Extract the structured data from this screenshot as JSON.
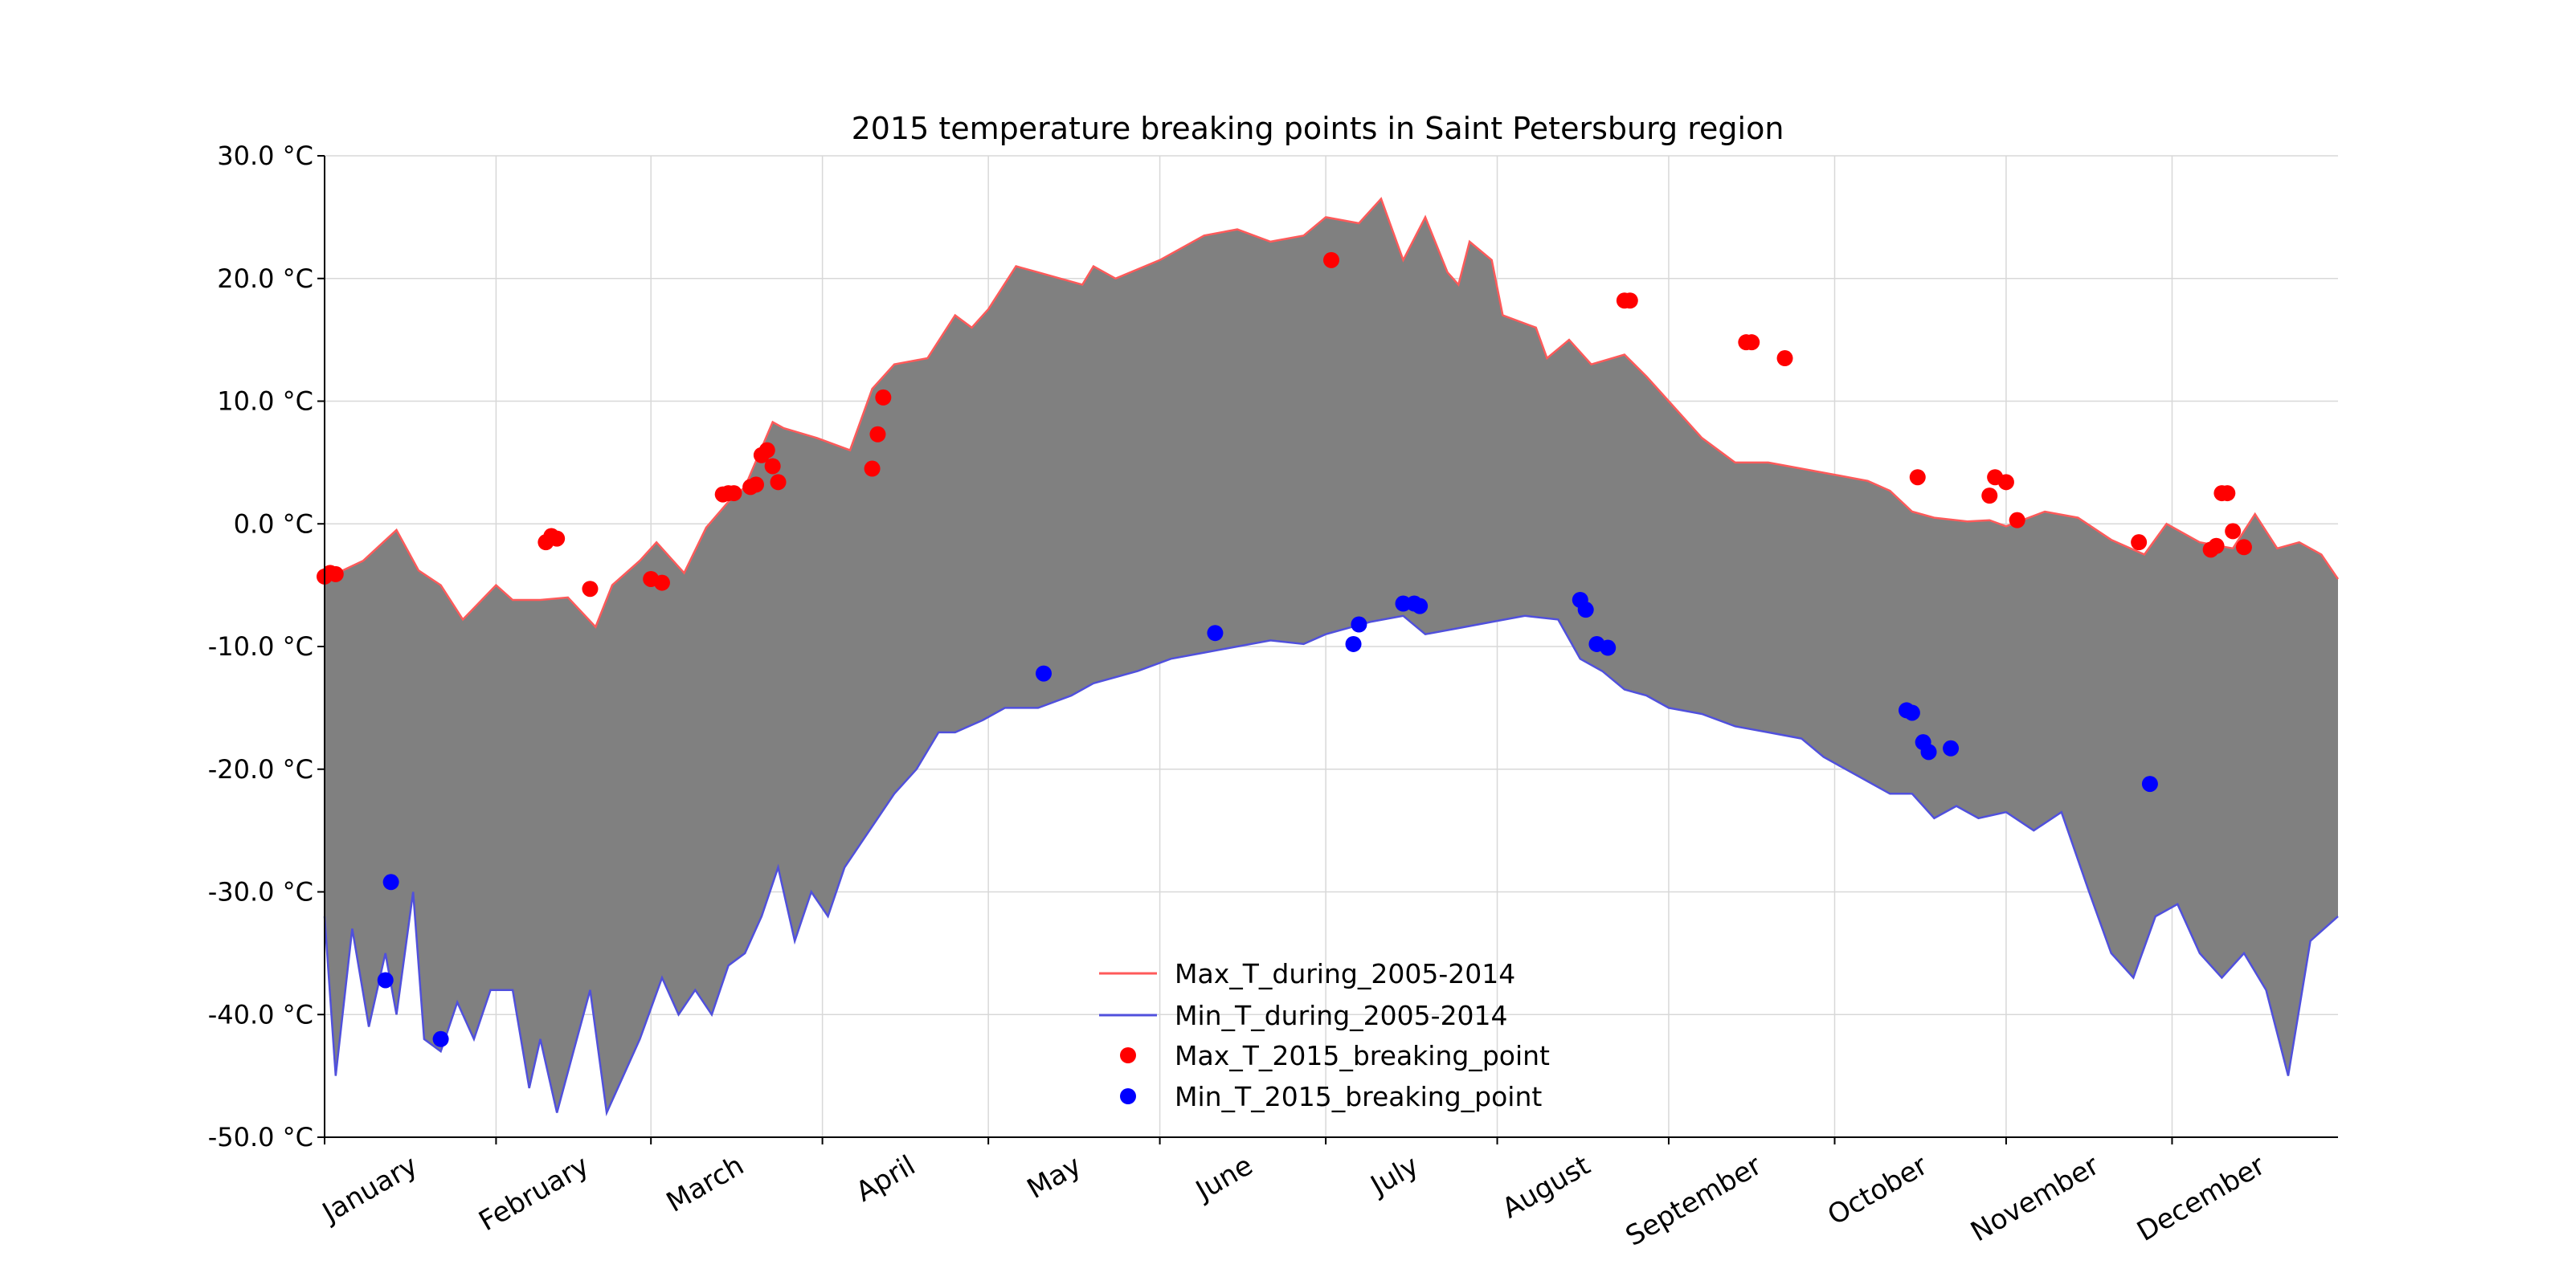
{
  "chart_data": {
    "type": "line",
    "title": "2015 temperature breaking points in Saint Petersburg region",
    "xlabel": "",
    "ylabel": "",
    "x_unit": "day_of_year_2015",
    "x_range": [
      1,
      365
    ],
    "ylim": [
      -50,
      30
    ],
    "y_ticks": [
      -50,
      -40,
      -30,
      -20,
      -10,
      0,
      10,
      20,
      30
    ],
    "y_tick_labels": [
      "-50.0 °C",
      "-40.0 °C",
      "-30.0 °C",
      "-20.0 °C",
      "-10.0 °C",
      "0.0 °C",
      "10.0 °C",
      "20.0 °C",
      "30.0 °C"
    ],
    "month_ticks": [
      1,
      32,
      60,
      91,
      121,
      152,
      182,
      213,
      244,
      274,
      305,
      335
    ],
    "month_labels": [
      "January",
      "February",
      "March",
      "April",
      "May",
      "June",
      "July",
      "August",
      "September",
      "October",
      "November",
      "December"
    ],
    "grid": true,
    "fill_between": true,
    "legend_position": "lower-center",
    "series": [
      {
        "name": "Max_T_during_2005-2014",
        "kind": "line",
        "color": "#ff5a5a",
        "x": [
          1,
          8,
          14,
          18,
          22,
          26,
          32,
          35,
          40,
          45,
          50,
          53,
          58,
          61,
          66,
          70,
          74,
          77,
          82,
          84,
          90,
          96,
          100,
          104,
          110,
          115,
          118,
          121,
          126,
          130,
          134,
          138,
          140,
          144,
          152,
          160,
          166,
          172,
          178,
          182,
          188,
          192,
          196,
          200,
          204,
          206,
          208,
          212,
          214,
          220,
          222,
          226,
          230,
          236,
          240,
          244,
          250,
          256,
          262,
          268,
          274,
          280,
          284,
          288,
          292,
          298,
          302,
          305,
          312,
          318,
          324,
          330,
          334,
          340,
          346,
          350,
          354,
          358,
          362,
          365
        ],
        "y": [
          -4.5,
          -3,
          -0.5,
          -3.8,
          -5,
          -7.8,
          -5,
          -6.2,
          -6.2,
          -6,
          -8.4,
          -5,
          -3,
          -1.5,
          -4,
          -0.3,
          1.8,
          3,
          8.3,
          7.8,
          7,
          6,
          11,
          13,
          13.5,
          17,
          16,
          17.5,
          21,
          20.5,
          20,
          19.5,
          21,
          20,
          21.5,
          23.5,
          24,
          23,
          23.5,
          25,
          24.5,
          26.5,
          21.5,
          25,
          20.5,
          19.5,
          23,
          21.5,
          17,
          16,
          13.5,
          15,
          13,
          13.8,
          12,
          10,
          7,
          5,
          5,
          4.5,
          4,
          3.5,
          2.7,
          1,
          0.5,
          0.2,
          0.3,
          -0.2,
          1,
          0.5,
          -1.3,
          -2.5,
          0,
          -1.5,
          -2,
          0.8,
          -2,
          -1.5,
          -2.5,
          -4.5
        ]
      },
      {
        "name": "Min_T_during_2005-2014",
        "kind": "line",
        "color": "#5050dc",
        "x": [
          1,
          3,
          6,
          9,
          12,
          14,
          17,
          19,
          22,
          25,
          28,
          31,
          35,
          38,
          40,
          43,
          46,
          49,
          52,
          55,
          58,
          62,
          65,
          68,
          71,
          74,
          77,
          80,
          83,
          86,
          89,
          92,
          95,
          98,
          101,
          104,
          108,
          112,
          115,
          120,
          124,
          130,
          136,
          140,
          148,
          154,
          160,
          166,
          172,
          178,
          182,
          186,
          190,
          196,
          200,
          206,
          212,
          218,
          224,
          228,
          232,
          236,
          240,
          244,
          250,
          256,
          262,
          268,
          272,
          276,
          280,
          284,
          288,
          292,
          296,
          300,
          305,
          310,
          315,
          320,
          324,
          328,
          332,
          336,
          340,
          344,
          348,
          352,
          356,
          360,
          365
        ],
        "y": [
          -32,
          -45,
          -33,
          -41,
          -35,
          -40,
          -30,
          -42,
          -43,
          -39,
          -42,
          -38,
          -38,
          -46,
          -42,
          -48,
          -43,
          -38,
          -48,
          -45,
          -42,
          -37,
          -40,
          -38,
          -40,
          -36,
          -35,
          -32,
          -28,
          -34,
          -30,
          -32,
          -28,
          -26,
          -24,
          -22,
          -20,
          -17,
          -17,
          -16,
          -15,
          -15,
          -14,
          -13,
          -12,
          -11,
          -10.5,
          -10,
          -9.5,
          -9.8,
          -9,
          -8.5,
          -8,
          -7.5,
          -9,
          -8.5,
          -8,
          -7.5,
          -7.8,
          -11,
          -12,
          -13.5,
          -14,
          -15,
          -15.5,
          -16.5,
          -17,
          -17.5,
          -19,
          -20,
          -21,
          -22,
          -22,
          -24,
          -23,
          -24,
          -23.5,
          -25,
          -23.5,
          -30,
          -35,
          -37,
          -32,
          -31,
          -35,
          -37,
          -35,
          -38,
          -45,
          -34,
          -32
        ]
      },
      {
        "name": "Max_T_2015_breaking_point",
        "kind": "scatter",
        "color": "#ff0000",
        "x": [
          1,
          2,
          3,
          41,
          42,
          43,
          49,
          60,
          62,
          73,
          74,
          75,
          78,
          79,
          80,
          81,
          82,
          83,
          100,
          101,
          102,
          183,
          236,
          237,
          258,
          259,
          265,
          289,
          302,
          303,
          305,
          307,
          329,
          342,
          343,
          344,
          345,
          346,
          348
        ],
        "y": [
          -4.3,
          -4,
          -4.1,
          -1.5,
          -1,
          -1.2,
          -5.3,
          -4.5,
          -4.8,
          2.4,
          2.5,
          2.5,
          3,
          3.2,
          5.6,
          6,
          4.7,
          3.4,
          4.5,
          7.3,
          10.3,
          21.5,
          18.2,
          18.2,
          14.8,
          14.8,
          13.5,
          3.8,
          2.3,
          3.8,
          3.4,
          0.3,
          -1.5,
          -2.1,
          -1.8,
          2.5,
          2.5,
          -0.6,
          -1.9
        ]
      },
      {
        "name": "Min_T_2015_breaking_point",
        "kind": "scatter",
        "color": "#0000ff",
        "x": [
          12,
          13,
          22,
          131,
          162,
          187,
          188,
          196,
          198,
          199,
          228,
          229,
          231,
          233,
          287,
          288,
          290,
          291,
          295,
          331
        ],
        "y": [
          -37.2,
          -29.2,
          -42,
          -12.2,
          -8.9,
          -9.8,
          -8.2,
          -6.5,
          -6.5,
          -6.7,
          -6.2,
          -7,
          -9.8,
          -10.1,
          -15.2,
          -15.4,
          -17.8,
          -18.6,
          -18.3,
          -21.2
        ]
      }
    ]
  }
}
